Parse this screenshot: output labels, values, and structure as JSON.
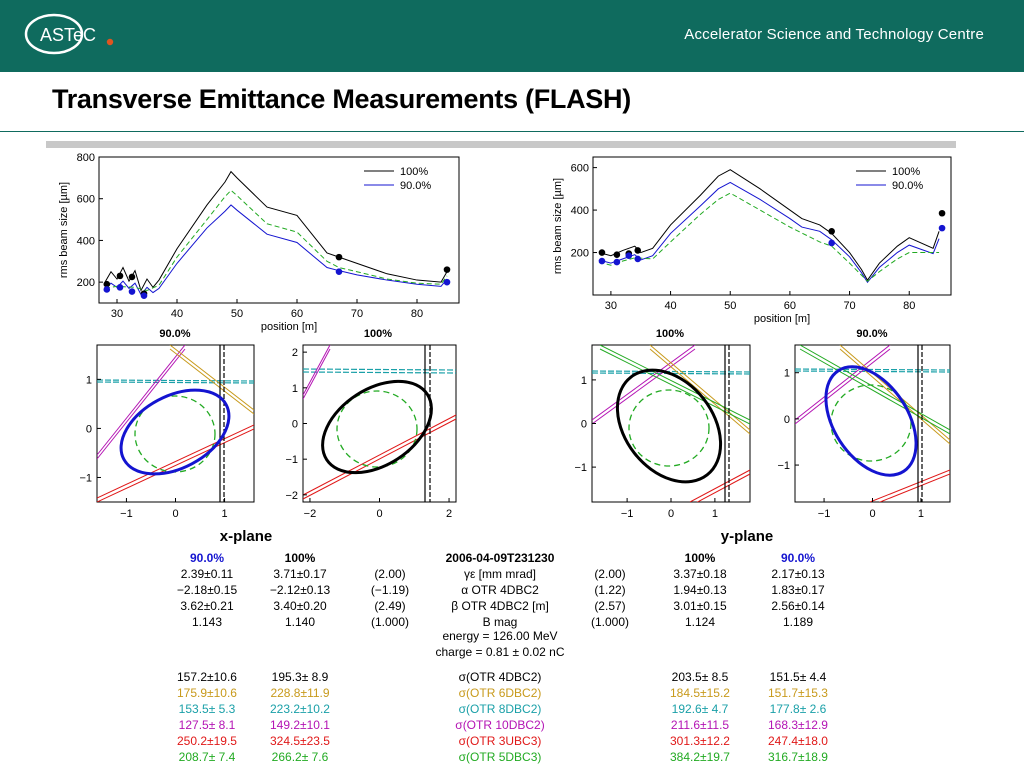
{
  "header": {
    "logo_text": "ASTeC",
    "org": "Accelerator Science and Technology Centre"
  },
  "slide": {
    "title": "Transverse Emittance Measurements (FLASH)"
  },
  "colors": {
    "header_bg": "#0f6b5e",
    "series_100": "#000000",
    "series_90": "#1414d0",
    "design": "#22aa22",
    "otr4": "#000000",
    "otr6": "#c89a1c",
    "otr8": "#1aa0a8",
    "otr10": "#b414b4",
    "otr3": "#e01818",
    "otr5": "#22aa22"
  },
  "chart_data": [
    {
      "type": "line",
      "name": "x-beam-size",
      "ylabel": "rms beam size [µm]",
      "xlabel": "position [m]",
      "xlim": [
        27,
        87
      ],
      "ylim": [
        100,
        800
      ],
      "xticks": [
        "30",
        "40",
        "50",
        "60",
        "70",
        "80"
      ],
      "yticks": [
        "200",
        "400",
        "600",
        "800"
      ],
      "legend": [
        "100%",
        "90.0%"
      ],
      "series": [
        {
          "name": "100%",
          "x": [
            28,
            29,
            30,
            31,
            32,
            33,
            34,
            35,
            36,
            37,
            40,
            45,
            48,
            49,
            50,
            55,
            60,
            65,
            67,
            70,
            75,
            80,
            84,
            85
          ],
          "y": [
            200,
            250,
            215,
            270,
            205,
            255,
            160,
            215,
            175,
            210,
            360,
            570,
            680,
            730,
            700,
            560,
            520,
            340,
            320,
            290,
            240,
            210,
            200,
            250
          ]
        },
        {
          "name": "90.0%",
          "x": [
            28,
            29,
            30,
            31,
            32,
            33,
            34,
            35,
            36,
            37,
            40,
            45,
            48,
            49,
            50,
            55,
            60,
            65,
            67,
            70,
            75,
            80,
            84,
            85
          ],
          "y": [
            165,
            195,
            175,
            205,
            170,
            195,
            140,
            175,
            150,
            170,
            290,
            460,
            540,
            570,
            545,
            430,
            390,
            270,
            255,
            235,
            210,
            190,
            180,
            215
          ]
        },
        {
          "x": [
            28,
            30,
            33,
            35,
            37,
            40,
            45,
            48,
            49,
            50,
            55,
            60,
            65,
            67,
            70,
            75,
            80,
            84,
            85
          ],
          "y": [
            170,
            180,
            175,
            160,
            185,
            320,
            500,
            610,
            640,
            615,
            480,
            440,
            300,
            270,
            250,
            215,
            195,
            190,
            230
          ]
        }
      ],
      "points_100": [
        [
          28.3,
          190
        ],
        [
          30.5,
          230
        ],
        [
          32.5,
          225
        ],
        [
          34.5,
          145
        ],
        [
          67,
          320
        ],
        [
          85,
          260
        ]
      ],
      "points_90": [
        [
          28.3,
          165
        ],
        [
          30.5,
          175
        ],
        [
          32.5,
          155
        ],
        [
          34.5,
          135
        ],
        [
          67,
          250
        ],
        [
          85,
          200
        ]
      ]
    },
    {
      "type": "line",
      "name": "y-beam-size",
      "ylabel": "rms beam size [µm]",
      "xlabel": "position [m]",
      "xlim": [
        27,
        87
      ],
      "ylim": [
        0,
        650
      ],
      "xticks": [
        "30",
        "40",
        "50",
        "60",
        "70",
        "80"
      ],
      "yticks": [
        "200",
        "400",
        "600"
      ],
      "legend": [
        "100%",
        "90.0%"
      ],
      "series": [
        {
          "name": "100%",
          "x": [
            28,
            30,
            32,
            34,
            35,
            37,
            40,
            45,
            48,
            50,
            55,
            60,
            62,
            65,
            67,
            70,
            72,
            73,
            75,
            78,
            80,
            84,
            85
          ],
          "y": [
            200,
            185,
            210,
            230,
            200,
            220,
            330,
            470,
            560,
            590,
            500,
            400,
            360,
            330,
            290,
            200,
            120,
            70,
            150,
            230,
            270,
            220,
            300
          ]
        },
        {
          "name": "90.0%",
          "x": [
            28,
            30,
            32,
            34,
            35,
            37,
            40,
            45,
            48,
            50,
            55,
            60,
            62,
            65,
            67,
            70,
            72,
            73,
            75,
            78,
            80,
            84,
            85
          ],
          "y": [
            165,
            150,
            170,
            190,
            165,
            185,
            290,
            420,
            500,
            530,
            450,
            360,
            320,
            300,
            260,
            180,
            105,
            60,
            130,
            200,
            235,
            195,
            265
          ]
        },
        {
          "x": [
            28,
            30,
            32,
            34,
            37,
            40,
            45,
            48,
            50,
            55,
            60,
            65,
            67,
            70,
            73,
            75,
            78,
            80,
            85
          ],
          "y": [
            155,
            140,
            160,
            175,
            170,
            250,
            380,
            450,
            480,
            400,
            320,
            250,
            230,
            150,
            65,
            110,
            170,
            200,
            200
          ]
        }
      ],
      "points_100": [
        [
          28.5,
          200
        ],
        [
          31,
          190
        ],
        [
          33,
          195
        ],
        [
          34.5,
          210
        ],
        [
          67,
          300
        ],
        [
          85.5,
          385
        ]
      ],
      "points_90": [
        [
          28.5,
          160
        ],
        [
          31,
          155
        ],
        [
          33,
          185
        ],
        [
          34.5,
          170
        ],
        [
          67,
          245
        ],
        [
          85.5,
          315
        ]
      ]
    }
  ],
  "phase_plots": {
    "x_label": "x-plane",
    "y_label": "y-plane",
    "x_ticks": [
      "-1",
      "0",
      "1"
    ],
    "x_ticks_wide": [
      "-2",
      "0",
      "2"
    ],
    "y_ticks_a": [
      "1",
      "0",
      "-1"
    ],
    "y_ticks_b": [
      "2",
      "1",
      "0",
      "-1",
      "-2"
    ],
    "tag_90": "90.0%",
    "tag_100": "100%"
  },
  "table": {
    "heads": {
      "x90": "90.0%",
      "x100": "100%",
      "center": "2006-04-09T231230",
      "y100": "100%",
      "y90": "90.0%"
    },
    "rows": [
      {
        "x90": "2.39±0.11",
        "x100": "3.71±0.17",
        "xd": "(2.00)",
        "label": "γε [mm mrad]",
        "yd": "(2.00)",
        "y100": "3.37±0.18",
        "y90": "2.17±0.13"
      },
      {
        "x90": "−2.18±0.15",
        "x100": "−2.12±0.13",
        "xd": "(−1.19)",
        "label": "α OTR 4DBC2",
        "yd": "(1.22)",
        "y100": "1.94±0.13",
        "y90": "1.83±0.17"
      },
      {
        "x90": "3.62±0.21",
        "x100": "3.40±0.20",
        "xd": "(2.49)",
        "label": "β OTR 4DBC2 [m]",
        "yd": "(2.57)",
        "y100": "3.01±0.15",
        "y90": "2.56±0.14"
      },
      {
        "x90": "1.143",
        "x100": "1.140",
        "xd": "(1.000)",
        "label": "B mag",
        "yd": "(1.000)",
        "y100": "1.124",
        "y90": "1.189"
      }
    ],
    "energy": "energy = 126.00 MeV",
    "charge": "charge = 0.81 ± 0.02 nC",
    "sigma_rows": [
      {
        "x90": "157.2±10.6",
        "x100": "195.3± 8.9",
        "label": "σ(OTR 4DBC2)",
        "y100": "203.5± 8.5",
        "y90": "151.5± 4.4",
        "color": "#000000"
      },
      {
        "x90": "175.9±10.6",
        "x100": "228.8±11.9",
        "label": "σ(OTR 6DBC2)",
        "y100": "184.5±15.2",
        "y90": "151.7±15.3",
        "color": "#c89a1c"
      },
      {
        "x90": "153.5± 5.3",
        "x100": "223.2±10.2",
        "label": "σ(OTR 8DBC2)",
        "y100": "192.6± 4.7",
        "y90": "177.8± 2.6",
        "color": "#1aa0a8"
      },
      {
        "x90": "127.5± 8.1",
        "x100": "149.2±10.1",
        "label": "σ(OTR 10DBC2)",
        "y100": "211.6±11.5",
        "y90": "168.3±12.9",
        "color": "#b414b4"
      },
      {
        "x90": "250.2±19.5",
        "x100": "324.5±23.5",
        "label": "σ(OTR 3UBC3)",
        "y100": "301.3±12.2",
        "y90": "247.4±18.0",
        "color": "#e01818"
      },
      {
        "x90": "208.7± 7.4",
        "x100": "266.2± 7.6",
        "label": "σ(OTR 5DBC3)",
        "y100": "384.2±19.7",
        "y90": "316.7±18.9",
        "color": "#22aa22"
      }
    ]
  }
}
